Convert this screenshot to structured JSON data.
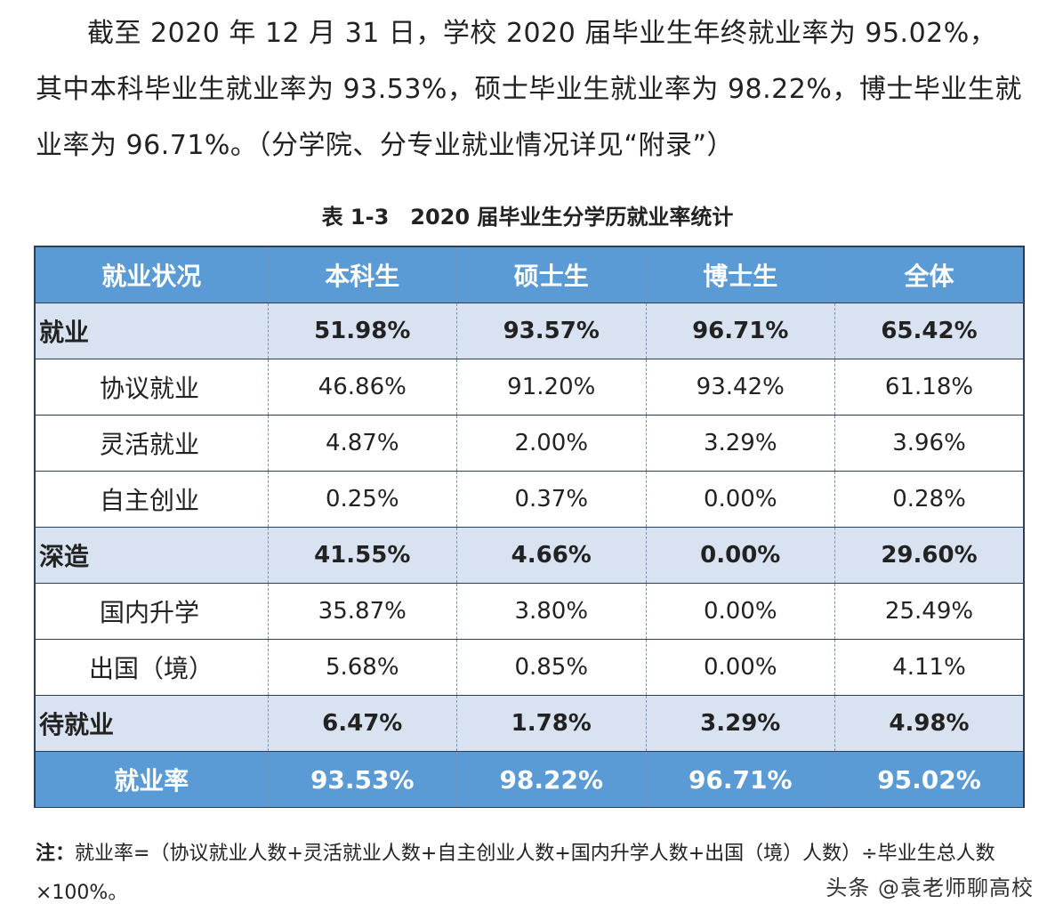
{
  "paragraph": "截至 2020 年 12 月 31 日，学校 2020 届毕业生年终就业率为 95.02%，其中本科毕业生就业率为 93.53%，硕士毕业生就业率为 98.22%，博士毕业生就业率为 96.71%。（分学院、分专业就业情况详见“附录”）",
  "caption": "表 1-3　2020 届毕业生分学历就业率统计",
  "table": {
    "headers": [
      "就业状况",
      "本科生",
      "硕士生",
      "博士生",
      "全体"
    ],
    "rows": [
      {
        "label": "就业",
        "values": [
          "51.98%",
          "93.57%",
          "96.71%",
          "65.42%"
        ]
      },
      {
        "label": "协议就业",
        "values": [
          "46.86%",
          "91.20%",
          "93.42%",
          "61.18%"
        ]
      },
      {
        "label": "灵活就业",
        "values": [
          "4.87%",
          "2.00%",
          "3.29%",
          "3.96%"
        ]
      },
      {
        "label": "自主创业",
        "values": [
          "0.25%",
          "0.37%",
          "0.00%",
          "0.28%"
        ]
      },
      {
        "label": "深造",
        "values": [
          "41.55%",
          "4.66%",
          "0.00%",
          "29.60%"
        ]
      },
      {
        "label": "国内升学",
        "values": [
          "35.87%",
          "3.80%",
          "0.00%",
          "25.49%"
        ]
      },
      {
        "label": "出国（境）",
        "values": [
          "5.68%",
          "0.85%",
          "0.00%",
          "4.11%"
        ]
      },
      {
        "label": "待就业",
        "values": [
          "6.47%",
          "1.78%",
          "3.29%",
          "4.98%"
        ]
      },
      {
        "label": "就业率",
        "values": [
          "93.53%",
          "98.22%",
          "96.71%",
          "95.02%"
        ]
      }
    ]
  },
  "note": {
    "prefix": "注：",
    "text": "就业率=（协议就业人数+灵活就业人数+自主创业人数+国内升学人数+出国（境）人数）÷毕业生总人数×100%。"
  },
  "watermark": "头条 @袁老师聊高校"
}
